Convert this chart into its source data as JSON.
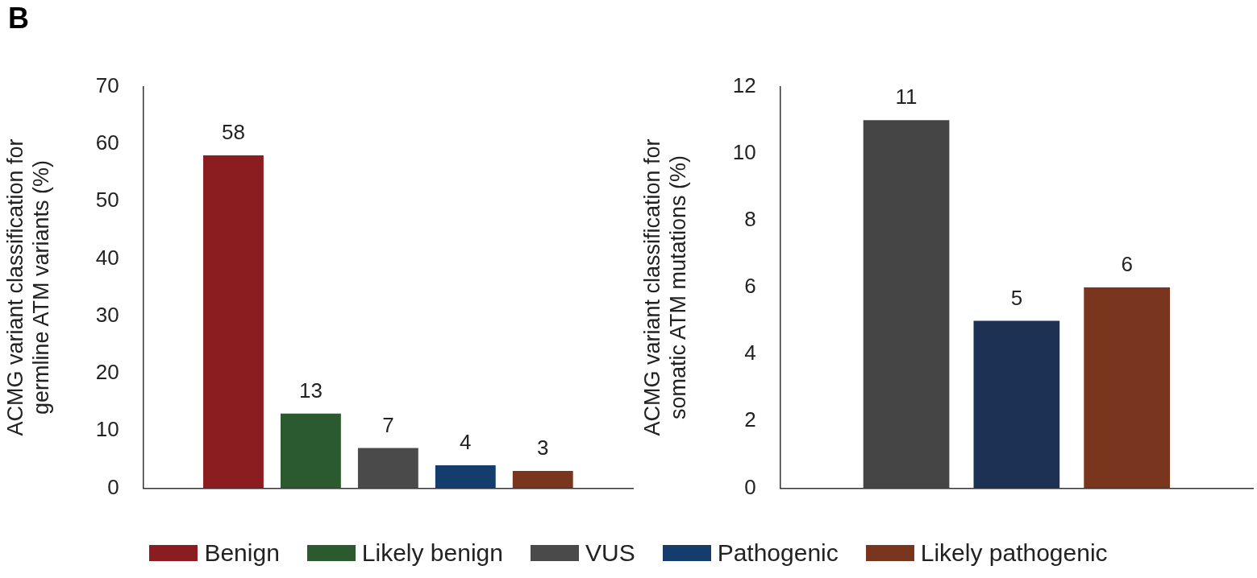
{
  "chart_data": [
    {
      "type": "bar",
      "annotations": [
        "B"
      ],
      "ylabel": "ACMG variant classification for germline ATM variants (%)",
      "categories": [
        null
      ],
      "ylim": [
        0,
        70
      ],
      "yticks": [
        0,
        10,
        20,
        30,
        40,
        50,
        60,
        70
      ],
      "grid": false,
      "legend": "bottom",
      "data_labels": true,
      "series": [
        {
          "name": "Benign",
          "color": "#8b1c1f",
          "values": [
            58
          ]
        },
        {
          "name": "Likely benign",
          "color": "#2a5a2e",
          "values": [
            13
          ]
        },
        {
          "name": "VUS",
          "color": "#4a4a4a",
          "values": [
            7
          ]
        },
        {
          "name": "Pathogenic",
          "color": "#143d6e",
          "values": [
            4
          ]
        },
        {
          "name": "Likely pathogenic",
          "color": "#7a351e",
          "values": [
            3
          ]
        }
      ]
    },
    {
      "type": "bar",
      "ylabel": "ACMG variant classification for somatic ATM mutations (%)",
      "categories": [
        null
      ],
      "ylim": [
        0,
        12
      ],
      "yticks": [
        0,
        2,
        4,
        6,
        8,
        10,
        12
      ],
      "grid": false,
      "data_labels": true,
      "series": [
        {
          "color": "#454545",
          "values": [
            11
          ]
        },
        {
          "color": "#1c3154",
          "values": [
            5
          ]
        },
        {
          "color": "#7a351e",
          "values": [
            6
          ]
        }
      ]
    }
  ]
}
